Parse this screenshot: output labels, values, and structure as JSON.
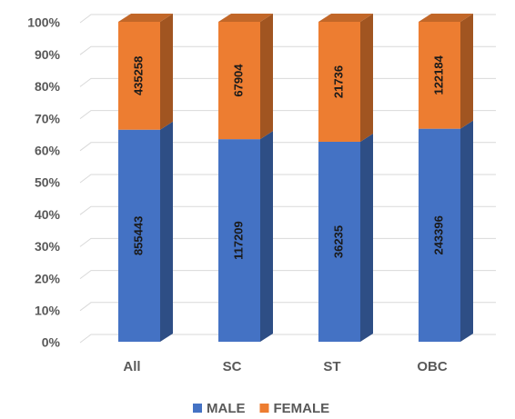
{
  "chart_data": {
    "type": "bar",
    "stack": "percent",
    "categories": [
      "All",
      "SC",
      "ST",
      "OBC"
    ],
    "series": [
      {
        "name": "MALE",
        "color": "#4472c4",
        "values": [
          855443,
          117209,
          36235,
          243396
        ]
      },
      {
        "name": "FEMALE",
        "color": "#ed7d31",
        "values": [
          435258,
          67904,
          21736,
          122184
        ]
      }
    ],
    "ylim": [
      0,
      100
    ],
    "yticks": [
      {
        "value": 0,
        "label": "0%"
      },
      {
        "value": 10,
        "label": "10%"
      },
      {
        "value": 20,
        "label": "20%"
      },
      {
        "value": 30,
        "label": "30%"
      },
      {
        "value": 40,
        "label": "40%"
      },
      {
        "value": 50,
        "label": "50%"
      },
      {
        "value": 60,
        "label": "60%"
      },
      {
        "value": 70,
        "label": "70%"
      },
      {
        "value": 80,
        "label": "80%"
      },
      {
        "value": 90,
        "label": "90%"
      },
      {
        "value": 100,
        "label": "100%"
      }
    ],
    "grid": true,
    "legend": "bottom"
  }
}
